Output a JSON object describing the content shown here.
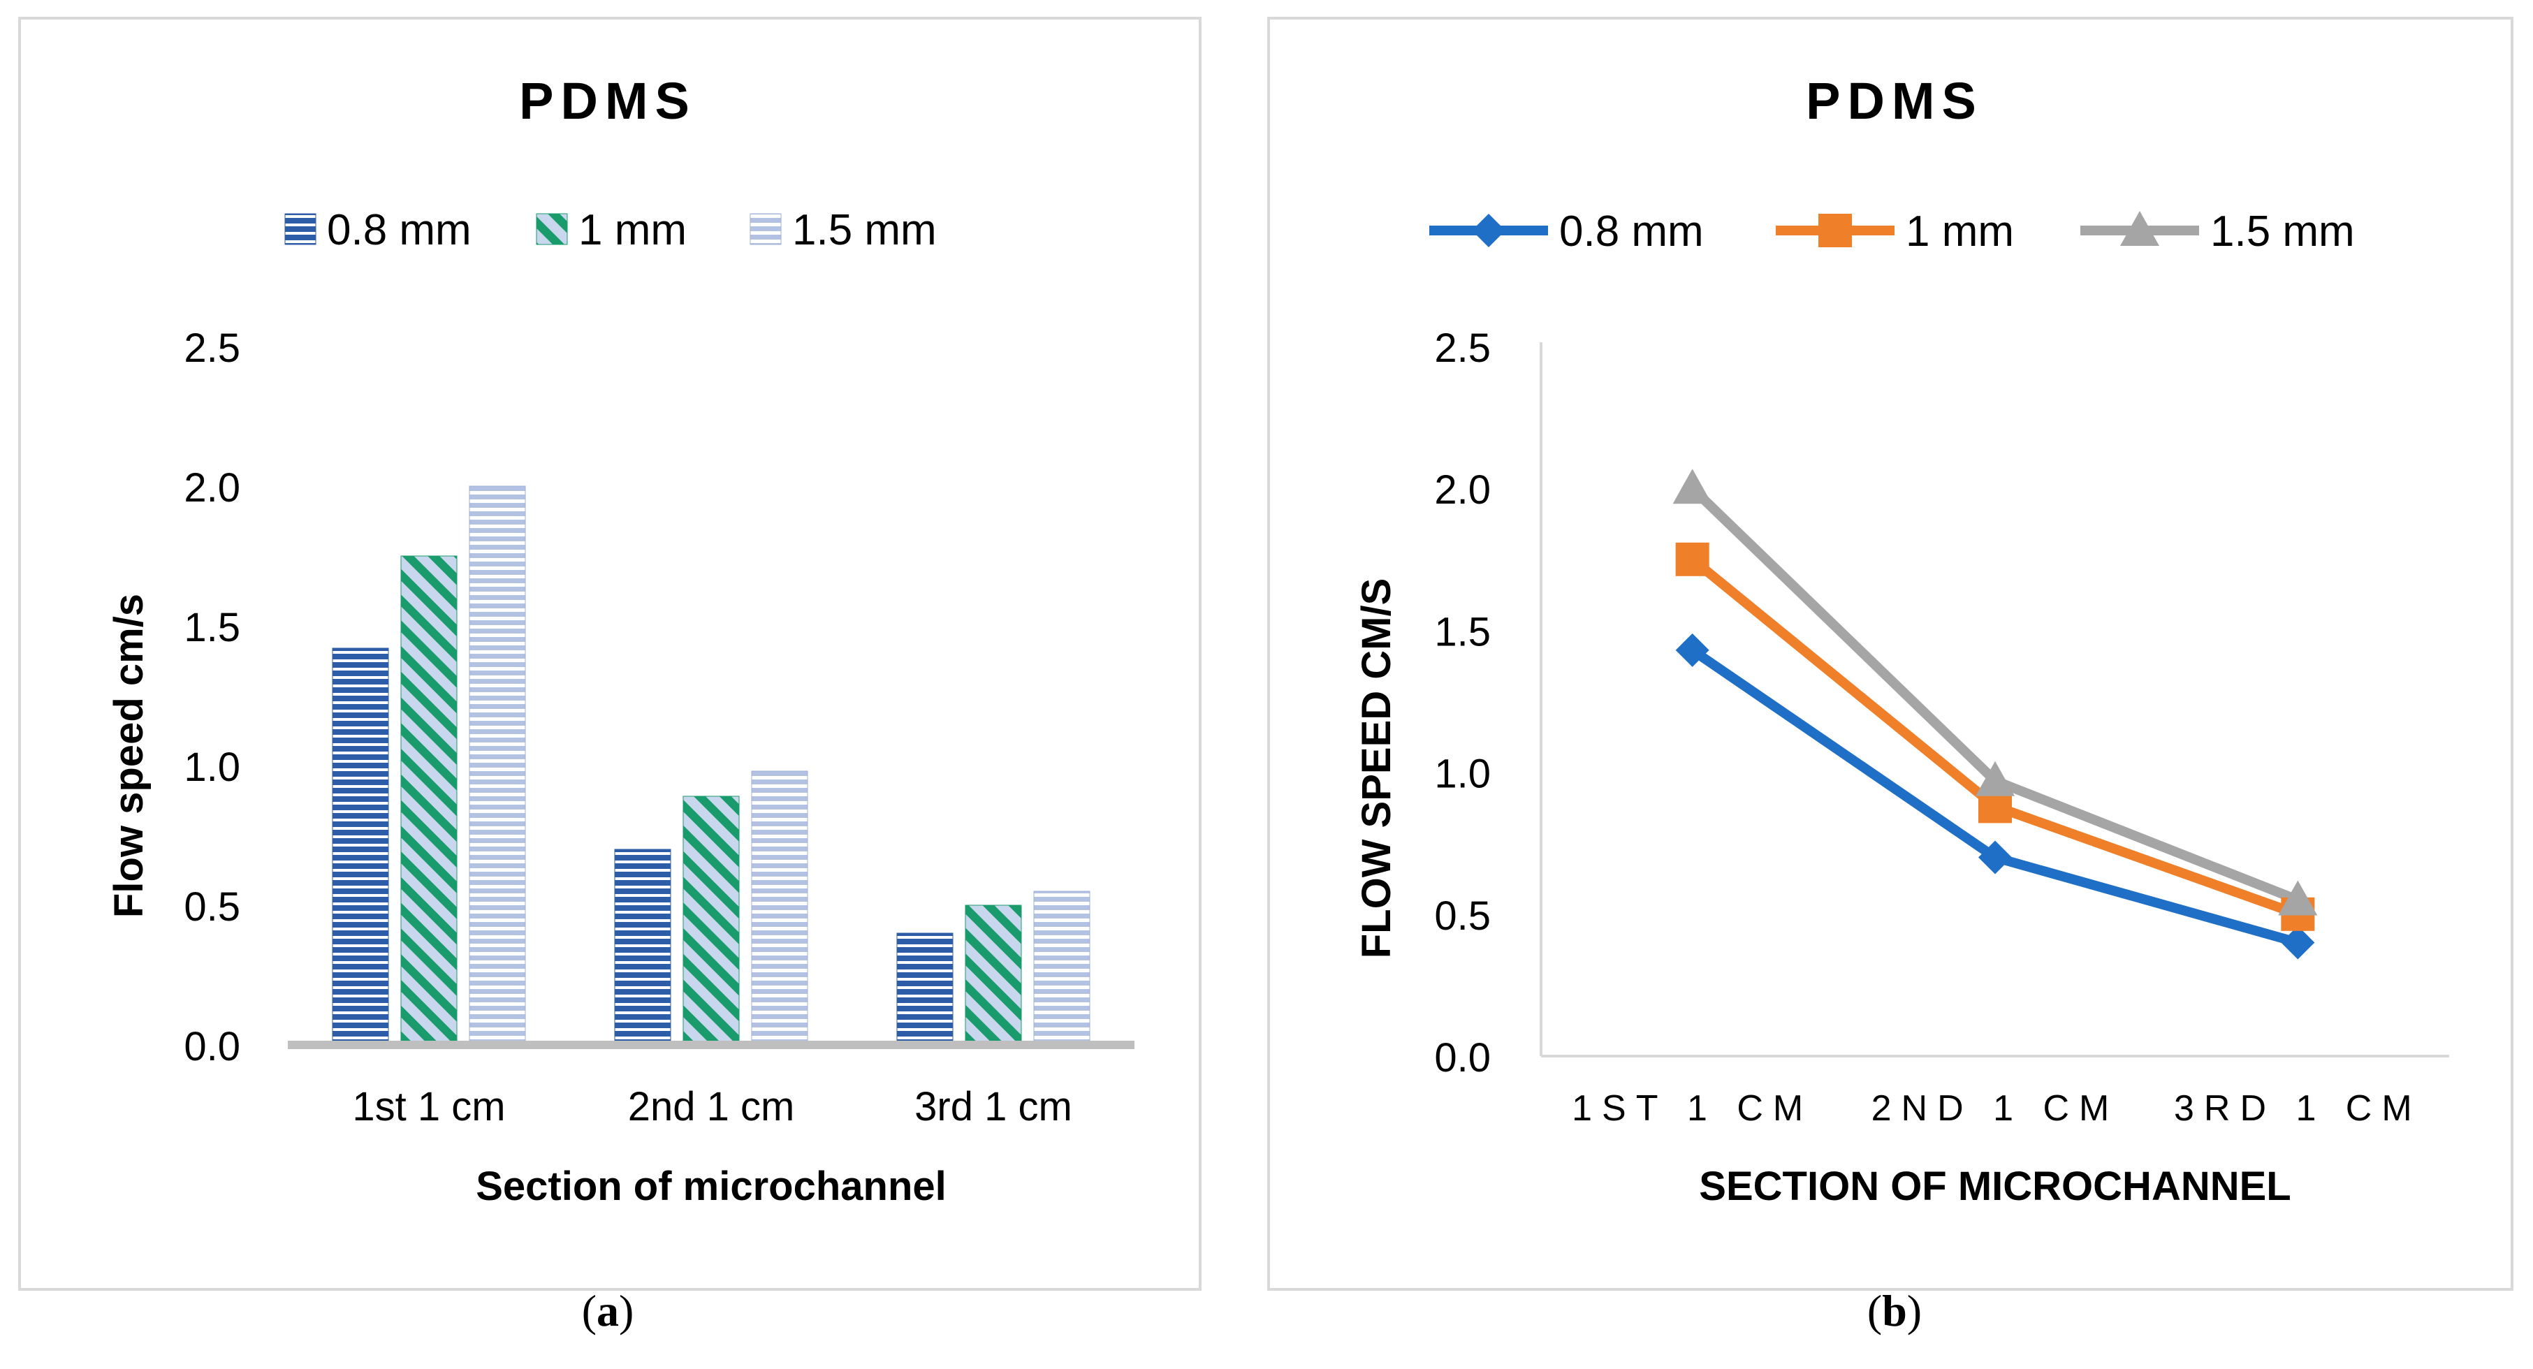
{
  "chart_data": [
    {
      "type": "bar",
      "title": "PDMS",
      "xlabel": "Section of microchannel",
      "ylabel": "Flow speed cm/s",
      "ylim": [
        0,
        2.5
      ],
      "yticks": [
        "0.0",
        "0.5",
        "1.0",
        "1.5",
        "2.0",
        "2.5"
      ],
      "categories": [
        "1st 1 cm",
        "2nd 1 cm",
        "3rd 1 cm"
      ],
      "legend_position": "top",
      "series": [
        {
          "name": "0.8 mm",
          "values": [
            1.42,
            0.7,
            0.4
          ],
          "color": "#2e5da8",
          "pattern": "horizontal stripes"
        },
        {
          "name": "1 mm",
          "values": [
            1.75,
            0.89,
            0.5
          ],
          "color": "#1a9b6c",
          "pattern": "diagonal stripes"
        },
        {
          "name": "1.5 mm",
          "values": [
            2.0,
            0.98,
            0.55
          ],
          "color": "#9fb0d8",
          "pattern": "light horizontal stripes"
        }
      ],
      "caption": "a"
    },
    {
      "type": "line",
      "title": "PDMS",
      "xlabel": "SECTION OF MICROCHANNEL",
      "ylabel": "FLOW SPEED CM/S",
      "ylim": [
        0,
        2.5
      ],
      "yticks": [
        "0.0",
        "0.5",
        "1.0",
        "1.5",
        "2.0",
        "2.5"
      ],
      "categories": [
        "1ST 1 CM",
        "2ND 1 CM",
        "3RD 1 CM"
      ],
      "legend_position": "top",
      "series": [
        {
          "name": "0.8 mm",
          "values": [
            1.43,
            0.7,
            0.4
          ],
          "color": "#1f6fc6",
          "marker": "diamond"
        },
        {
          "name": "1 mm",
          "values": [
            1.75,
            0.88,
            0.5
          ],
          "color": "#f07f2a",
          "marker": "square"
        },
        {
          "name": "1.5 mm",
          "values": [
            2.0,
            0.97,
            0.55
          ],
          "color": "#a5a5a5",
          "marker": "triangle"
        }
      ],
      "caption": "b"
    }
  ]
}
